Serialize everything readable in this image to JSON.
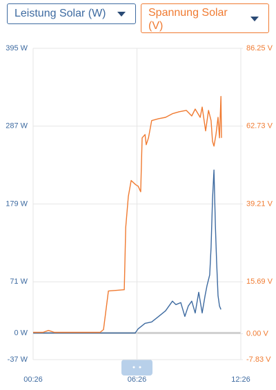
{
  "chart_data": {
    "type": "line",
    "xlim": [
      26,
      746
    ],
    "xticks": [
      {
        "value": 26,
        "label": "00:26"
      },
      {
        "value": 386,
        "label": "06:26"
      },
      {
        "value": 746,
        "label": "12:26"
      }
    ],
    "ylim": [
      -37,
      395
    ],
    "yticks": [
      {
        "value": -37,
        "label": "-37 W"
      },
      {
        "value": 0,
        "label": "0 W"
      },
      {
        "value": 71,
        "label": "71 W"
      },
      {
        "value": 179,
        "label": "179 W"
      },
      {
        "value": 287,
        "label": "287 W"
      },
      {
        "value": 395,
        "label": "395 W"
      }
    ],
    "y2lim": [
      -7.83,
      86.25
    ],
    "y2ticks": [
      {
        "value": -7.83,
        "label": "-7.83 V"
      },
      {
        "value": 0,
        "label": "0.00 V"
      },
      {
        "value": 15.69,
        "label": "15.69 V"
      },
      {
        "value": 39.21,
        "label": "39.21 V"
      },
      {
        "value": 62.73,
        "label": "62.73 V"
      },
      {
        "value": 86.25,
        "label": "86.25 V"
      }
    ],
    "grid": true,
    "series": [
      {
        "name": "Leistung Solar (W)",
        "color": "#3d6aa0",
        "axis": "y",
        "x": [
          26,
          380,
          390,
          414,
          437,
          461,
          485,
          509,
          521,
          538,
          552,
          564,
          576,
          588,
          600,
          612,
          622,
          629,
          638,
          643,
          648,
          653,
          658,
          662,
          667,
          672,
          677
        ],
        "values": [
          0,
          0,
          5.7,
          13.4,
          15.3,
          23.0,
          30.7,
          44.1,
          39.3,
          42.1,
          23.0,
          37.4,
          44.1,
          27.8,
          56.5,
          27.8,
          51.7,
          66.1,
          80.5,
          118.8,
          185.8,
          226.1,
          147.5,
          99.6,
          51.7,
          37.4,
          32.6
        ]
      },
      {
        "name": "Spannung Solar (V)",
        "color": "#f07a30",
        "axis": "y2",
        "x": [
          26,
          60,
          79,
          100,
          258,
          270,
          287,
          342,
          347,
          356,
          366,
          382,
          390,
          399,
          404,
          414,
          418,
          426,
          437,
          461,
          485,
          509,
          533,
          557,
          576,
          588,
          605,
          612,
          624,
          634,
          643,
          648,
          653,
          660,
          667,
          672,
          677,
          679
        ],
        "values": [
          0.4,
          0.4,
          1.0,
          0.4,
          0.4,
          1.25,
          12.9,
          13.3,
          32.1,
          41.5,
          46.3,
          45.0,
          44.6,
          42.9,
          59.2,
          60.2,
          57.1,
          59.2,
          64.4,
          65.0,
          65.4,
          66.5,
          67.1,
          67.5,
          65.8,
          67.9,
          65.4,
          68.5,
          61.3,
          67.5,
          64.4,
          58.1,
          56.7,
          60.2,
          65.4,
          59.2,
          71.7,
          59.2
        ]
      }
    ]
  }
}
